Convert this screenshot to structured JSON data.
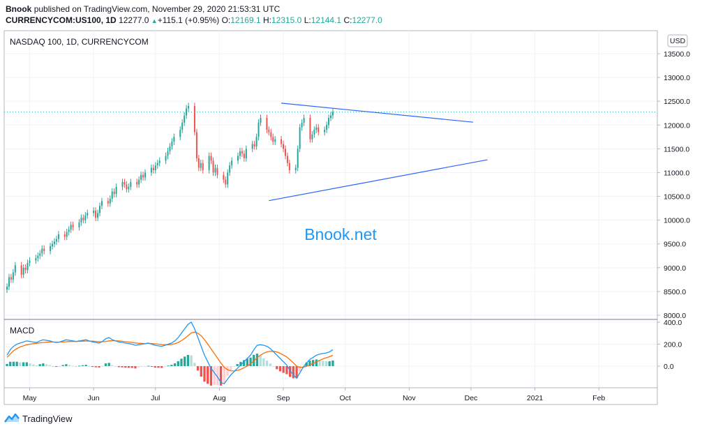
{
  "header": {
    "publisher": "Bnook",
    "published_text": "published on TradingView.com, November 29, 2020 21:53:31 UTC",
    "symbol": "CURRENCYCOM:US100, 1D",
    "last": "12277.0",
    "change": "+115.1 (+0.95%)",
    "o_label": "O:",
    "o_value": "12169.1",
    "h_label": "H:",
    "h_value": "12315.0",
    "l_label": "L:",
    "l_value": "12144.1",
    "c_label": "C:",
    "c_value": "12277.0"
  },
  "pane_title": "NASDAQ 100, 1D, CURRENCYCOM",
  "currency_label": "USD",
  "watermark": "Bnook.net",
  "macd_title": "MACD",
  "footer_brand": "TradingView",
  "colors": {
    "up": "#26a69a",
    "down": "#ef5350",
    "macd_line": "#2196f3",
    "signal_line": "#ff6d00",
    "trendline": "#2962ff",
    "hist_up_strong": "#26a69a",
    "hist_up_weak": "#b2dfdb",
    "hist_down_strong": "#ef5350",
    "hist_down_weak": "#ffcdd2"
  },
  "chart_data": [
    {
      "type": "candlestick",
      "title": "NASDAQ 100, 1D, CURRENCYCOM",
      "y_axis": {
        "min": 8000,
        "max": 13500,
        "ticks": [
          "13500.0",
          "13000.0",
          "12500.0",
          "12000.0",
          "11500.0",
          "11000.0",
          "10500.0",
          "10000.0",
          "9500.0",
          "9000.0",
          "8500.0",
          "8000.0"
        ]
      },
      "x_axis": {
        "start": "2020-04-20",
        "ticks": [
          "May",
          "Jun",
          "Jul",
          "Aug",
          "Sep",
          "Oct",
          "Nov",
          "Dec",
          "2021",
          "Feb"
        ]
      },
      "last_price": 12277,
      "candle_closes": [
        8600,
        8800,
        8750,
        8900,
        9050,
        8850,
        9000,
        8950,
        9100,
        9150,
        9200,
        9250,
        9300,
        9400,
        9350,
        9450,
        9500,
        9550,
        9600,
        9700,
        9650,
        9750,
        9800,
        9900,
        9850,
        9950,
        10050,
        10000,
        10100,
        10150,
        10200,
        10050,
        10150,
        10300,
        10400,
        10350,
        10450,
        10600,
        10550,
        10700,
        10800,
        10750,
        10650,
        10700,
        10800,
        10750,
        10850,
        10950,
        10900,
        11000,
        11100,
        11050,
        11150,
        11200,
        11250,
        11350,
        11450,
        11550,
        11650,
        11750,
        11900,
        12050,
        12200,
        12350,
        12400,
        11850,
        11300,
        11100,
        11200,
        11050,
        11350,
        11250,
        11000,
        11100,
        10950,
        10850,
        10750,
        11000,
        11150,
        11250,
        11350,
        11450,
        11400,
        11300,
        11500,
        11600,
        11550,
        11750,
        12050,
        12150,
        11900,
        11850,
        11750,
        11650,
        11700,
        11600,
        11500,
        11350,
        11200,
        11050,
        11100,
        11500,
        11950,
        12050,
        12150,
        11700,
        11800,
        11900,
        11950,
        11850,
        11900,
        12000,
        12150,
        12200,
        12277
      ],
      "trendlines": [
        {
          "name": "upper",
          "from": {
            "date": "2020-08-31",
            "value": 12460
          },
          "to": {
            "date": "2020-12-02",
            "value": 12060
          }
        },
        {
          "name": "lower",
          "from": {
            "date": "2020-08-25",
            "value": 10410
          },
          "to": {
            "date": "2020-12-09",
            "value": 11270
          }
        }
      ]
    },
    {
      "type": "line",
      "title": "MACD",
      "y_axis": {
        "min": -200,
        "max": 400,
        "ticks": [
          "400.0",
          "200.0",
          "0.0"
        ]
      },
      "series": [
        {
          "name": "MACD",
          "values": [
            100,
            150,
            180,
            200,
            210,
            220,
            230,
            225,
            220,
            215,
            230,
            240,
            235,
            230,
            220,
            215,
            220,
            230,
            240,
            235,
            230,
            225,
            230,
            235,
            240,
            230,
            220,
            215,
            210,
            225,
            250,
            260,
            240,
            230,
            220,
            215,
            210,
            205,
            200,
            190,
            195,
            200,
            205,
            210,
            200,
            190,
            185,
            180,
            190,
            200,
            210,
            230,
            260,
            300,
            340,
            380,
            400,
            340,
            260,
            180,
            100,
            40,
            -20,
            -60,
            -100,
            -150,
            -160,
            -120,
            -80,
            -50,
            -20,
            10,
            40,
            70,
            100,
            150,
            190,
            195,
            190,
            180,
            160,
            130,
            100,
            70,
            40,
            10,
            -40,
            -80,
            -110,
            -60,
            -10,
            30,
            60,
            80,
            100,
            110,
            115,
            120,
            130,
            150
          ]
        },
        {
          "name": "Signal",
          "values": [
            80,
            110,
            140,
            160,
            175,
            185,
            195,
            200,
            205,
            208,
            212,
            215,
            218,
            220,
            220,
            219,
            219,
            220,
            222,
            224,
            225,
            225,
            226,
            227,
            228,
            228,
            227,
            225,
            222,
            222,
            225,
            230,
            232,
            231,
            229,
            226,
            223,
            220,
            216,
            211,
            208,
            207,
            206,
            207,
            206,
            203,
            200,
            196,
            195,
            195,
            198,
            204,
            215,
            232,
            253,
            278,
            302,
            310,
            300,
            276,
            241,
            201,
            157,
            114,
            71,
            27,
            -10,
            -32,
            -42,
            -44,
            -39,
            -29,
            -15,
            2,
            22,
            47,
            76,
            100,
            118,
            130,
            136,
            135,
            128,
            117,
            101,
            83,
            58,
            30,
            0,
            -10,
            -10,
            -2,
            10,
            24,
            39,
            53,
            66,
            76,
            86,
            99
          ]
        }
      ]
    }
  ]
}
